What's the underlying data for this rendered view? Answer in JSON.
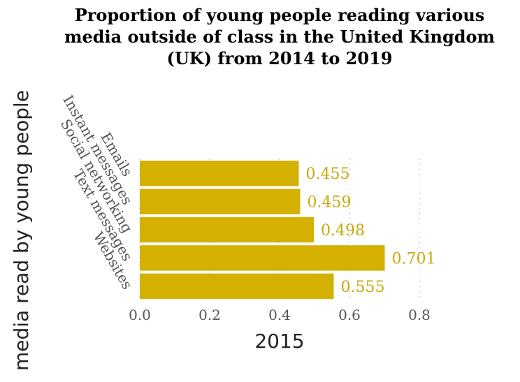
{
  "chart_data": {
    "type": "bar",
    "orientation": "horizontal",
    "title_lines": [
      "Proportion of young people reading various",
      "media outside of class in the United Kingdom",
      "(UK) from 2014 to 2019"
    ],
    "categories": [
      "Emails",
      "Instant messages",
      "Social networking",
      "Text messages",
      "Websites"
    ],
    "values": [
      0.455,
      0.459,
      0.498,
      0.701,
      0.555
    ],
    "value_labels": [
      "0.455",
      "0.459",
      "0.498",
      "0.701",
      "0.555"
    ],
    "xlabel": "2015",
    "ylabel": "media read by young people",
    "xlim": [
      0,
      0.8
    ],
    "xticks": [
      0.0,
      0.2,
      0.4,
      0.6,
      0.8
    ],
    "xtick_labels": [
      "0.0",
      "0.2",
      "0.4",
      "0.6",
      "0.8"
    ],
    "grid": "vertical dotted",
    "bar_color": "#d4b000",
    "label_color": "#c8a80a"
  }
}
